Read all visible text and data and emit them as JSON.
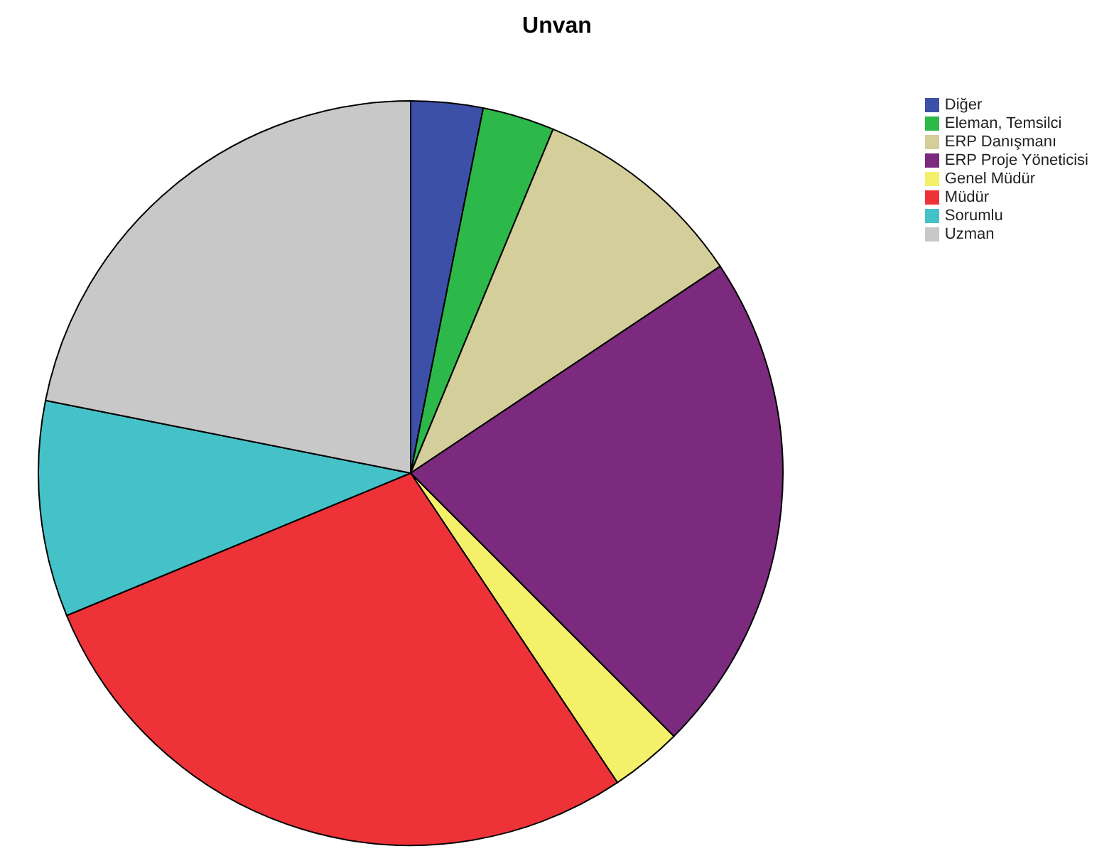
{
  "chart_data": {
    "type": "pie",
    "title": "Unvan",
    "categories": [
      "Diğer",
      "Eleman, Temsilci",
      "ERP Danışmanı",
      "ERP Proje Yöneticisi",
      "Genel Müdür",
      "Müdür",
      "Sorumlu",
      "Uzman"
    ],
    "values": [
      3.125,
      3.125,
      9.375,
      21.875,
      3.125,
      28.125,
      9.375,
      21.875
    ],
    "colors": [
      "#3c50a8",
      "#2db84a",
      "#d4cf9a",
      "#7b2a7e",
      "#f5f06a",
      "#ee3338",
      "#45c2c8",
      "#c8c8c8"
    ],
    "legend": "top right"
  }
}
